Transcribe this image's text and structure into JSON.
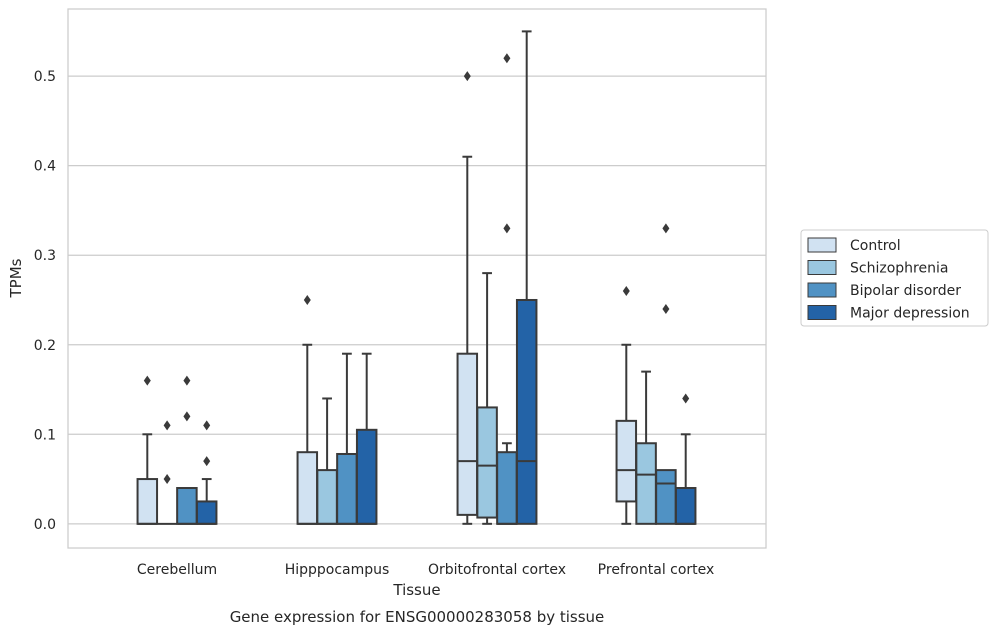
{
  "chart_data": {
    "type": "box",
    "title": "Gene expression for ENSG00000283058 by tissue",
    "xlabel": "Tissue",
    "ylabel": "TPMs",
    "ylim": [
      -0.027,
      0.575
    ],
    "yticks": [
      0.0,
      0.1,
      0.2,
      0.3,
      0.4,
      0.5
    ],
    "ytick_labels": [
      "0.0",
      "0.1",
      "0.2",
      "0.3",
      "0.4",
      "0.5"
    ],
    "categories": [
      "Cerebellum",
      "Hipppocampus",
      "Orbitofrontal cortex",
      "Prefrontal cortex"
    ],
    "grid": "horizontal",
    "legend_position": "outside-right",
    "series": [
      {
        "name": "Control",
        "color": "#d1e2f2",
        "boxes": [
          {
            "min": 0,
            "q1": 0,
            "median": 0,
            "q3": 0.05,
            "max": 0.1,
            "outliers": [
              0.16
            ]
          },
          {
            "min": 0,
            "q1": 0,
            "median": 0,
            "q3": 0.08,
            "max": 0.2,
            "outliers": [
              0.25
            ]
          },
          {
            "min": 0,
            "q1": 0.01,
            "median": 0.07,
            "q3": 0.19,
            "max": 0.41,
            "outliers": [
              0.5
            ]
          },
          {
            "min": 0,
            "q1": 0.025,
            "median": 0.06,
            "q3": 0.115,
            "max": 0.2,
            "outliers": [
              0.26
            ]
          }
        ]
      },
      {
        "name": "Schizophrenia",
        "color": "#9ac7e0",
        "boxes": [
          {
            "min": 0,
            "q1": 0,
            "median": 0,
            "q3": 0,
            "max": 0,
            "outliers": [
              0.05,
              0.11
            ]
          },
          {
            "min": 0,
            "q1": 0,
            "median": 0,
            "q3": 0.06,
            "max": 0.14,
            "outliers": []
          },
          {
            "min": 0,
            "q1": 0.007,
            "median": 0.065,
            "q3": 0.13,
            "max": 0.28,
            "outliers": []
          },
          {
            "min": 0,
            "q1": 0,
            "median": 0.055,
            "q3": 0.09,
            "max": 0.17,
            "outliers": []
          }
        ]
      },
      {
        "name": "Bipolar disorder",
        "color": "#5092c4",
        "boxes": [
          {
            "min": 0,
            "q1": 0,
            "median": 0,
            "q3": 0.04,
            "max": 0.04,
            "outliers": [
              0.12,
              0.16
            ]
          },
          {
            "min": 0,
            "q1": 0,
            "median": 0,
            "q3": 0.078,
            "max": 0.19,
            "outliers": []
          },
          {
            "min": 0,
            "q1": 0,
            "median": 0,
            "q3": 0.08,
            "max": 0.09,
            "outliers": [
              0.33,
              0.52
            ]
          },
          {
            "min": 0,
            "q1": 0,
            "median": 0.045,
            "q3": 0.06,
            "max": 0.06,
            "outliers": [
              0.24,
              0.33
            ]
          }
        ]
      },
      {
        "name": "Major depression",
        "color": "#2363a7",
        "boxes": [
          {
            "min": 0,
            "q1": 0,
            "median": 0,
            "q3": 0.025,
            "max": 0.05,
            "outliers": [
              0.07,
              0.11
            ]
          },
          {
            "min": 0,
            "q1": 0,
            "median": 0,
            "q3": 0.105,
            "max": 0.19,
            "outliers": []
          },
          {
            "min": 0,
            "q1": 0,
            "median": 0.07,
            "q3": 0.25,
            "max": 0.55,
            "outliers": []
          },
          {
            "min": 0,
            "q1": 0,
            "median": 0,
            "q3": 0.04,
            "max": 0.1,
            "outliers": [
              0.14
            ]
          }
        ]
      }
    ]
  }
}
